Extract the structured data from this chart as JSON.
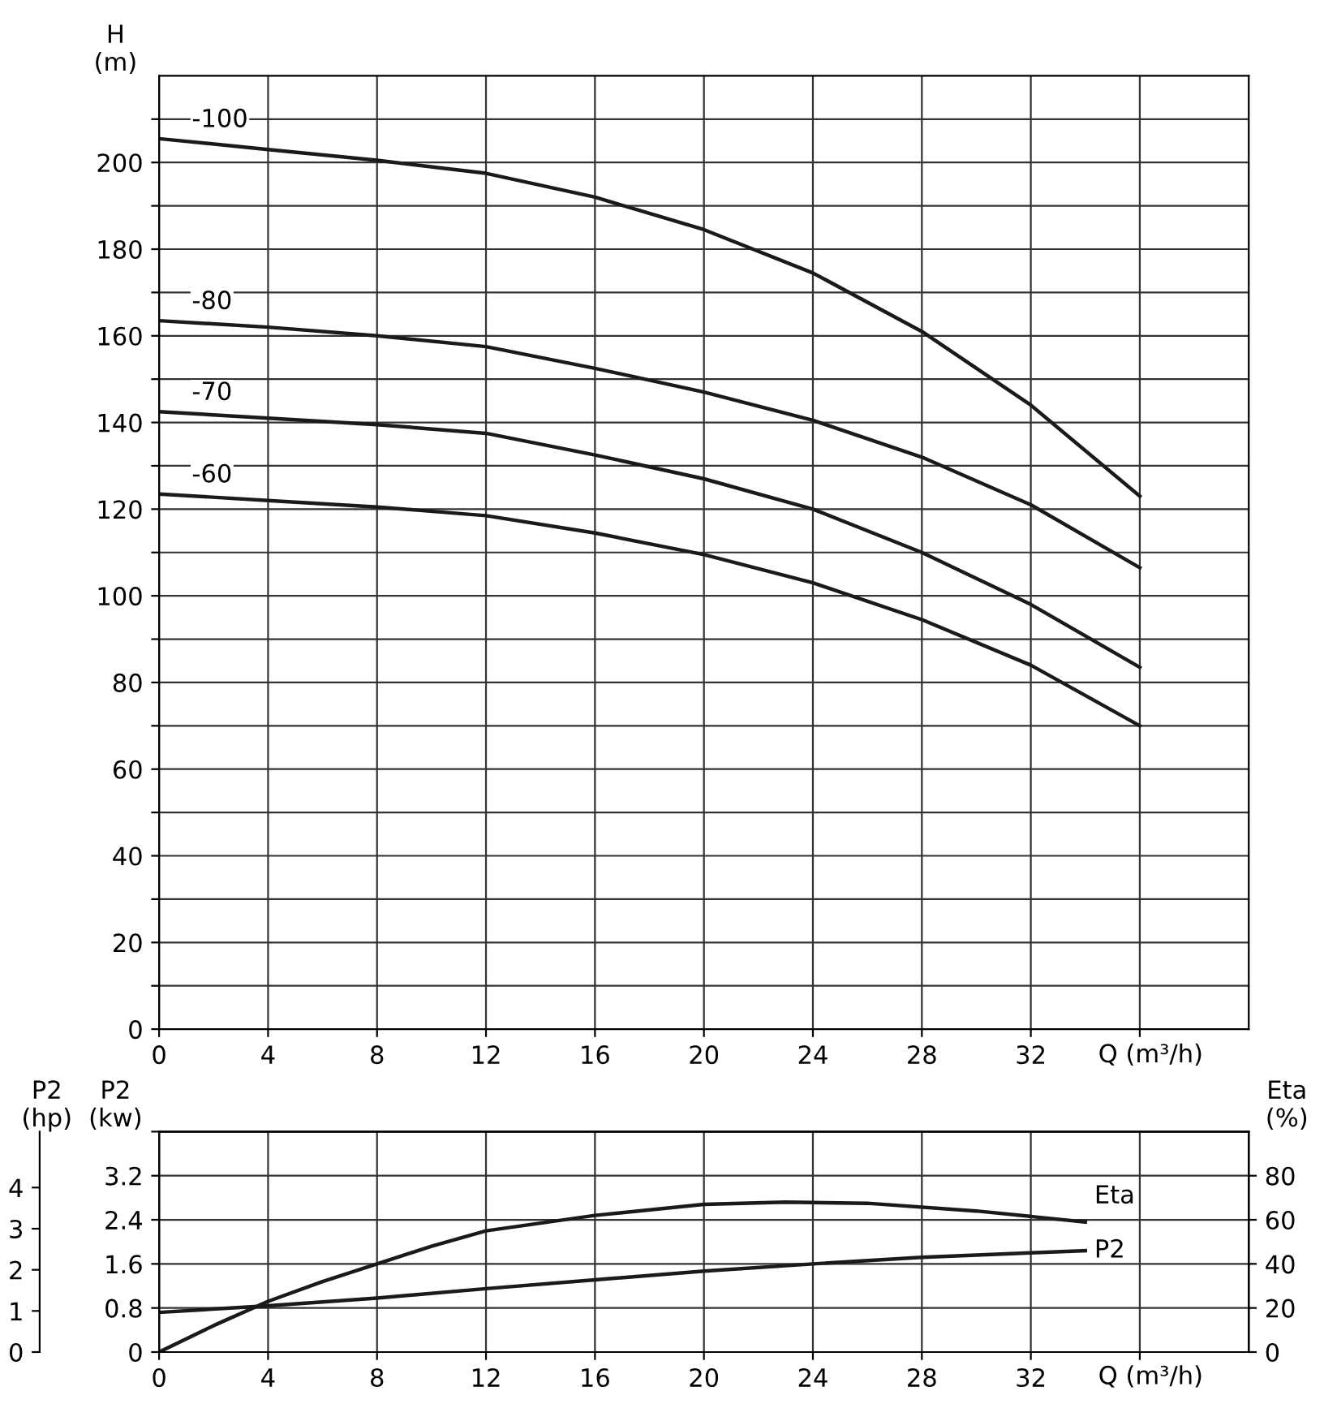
{
  "chart_data": [
    {
      "type": "line",
      "ylabel": "H\n(m)",
      "xlabel": "Q (m³/h)",
      "xlim": [
        0,
        40
      ],
      "ylim": [
        0,
        220
      ],
      "grid": true,
      "legend": false,
      "marker": "none",
      "line_style": "solid",
      "xticks": [
        0,
        4,
        8,
        12,
        16,
        20,
        24,
        28,
        32,
        {
          "value": 36,
          "label": null
        }
      ],
      "yticks": [
        0,
        {
          "value": 10,
          "label": null
        },
        20,
        {
          "value": 30,
          "label": null
        },
        40,
        {
          "value": 50,
          "label": null
        },
        60,
        {
          "value": 70,
          "label": null
        },
        80,
        {
          "value": 90,
          "label": null
        },
        100,
        {
          "value": 110,
          "label": null
        },
        120,
        {
          "value": 130,
          "label": null
        },
        140,
        {
          "value": 150,
          "label": null
        },
        160,
        {
          "value": 170,
          "label": null
        },
        180,
        {
          "value": 190,
          "label": null
        },
        200,
        {
          "value": 210,
          "label": null
        }
      ],
      "x": [
        0,
        4,
        8,
        12,
        16,
        20,
        24,
        28,
        32,
        36
      ],
      "series": [
        {
          "name": "-100",
          "color": "#1a1a1a",
          "values": [
            205.5,
            203,
            200.5,
            197.5,
            192,
            184.5,
            174.5,
            161,
            144,
            123
          ]
        },
        {
          "name": "-80",
          "color": "#1a1a1a",
          "values": [
            163.5,
            162,
            160,
            157.5,
            152.5,
            147,
            140.5,
            132,
            121,
            106.5
          ]
        },
        {
          "name": "-70",
          "color": "#1a1a1a",
          "values": [
            142.5,
            141,
            139.5,
            137.5,
            132.5,
            127,
            120,
            110,
            98,
            83.5
          ]
        },
        {
          "name": "-60",
          "color": "#1a1a1a",
          "values": [
            123.5,
            122,
            120.5,
            118.5,
            114.5,
            109.5,
            103,
            94.5,
            84,
            70
          ]
        }
      ]
    },
    {
      "type": "line",
      "ylabel": "P2\n(kw)",
      "y2label": "Eta\n(%)",
      "y3label": "P2\n(hp)",
      "xlabel": "Q (m³/h)",
      "xlim": [
        0,
        40
      ],
      "ylim": [
        0,
        4.0
      ],
      "y2lim": [
        0,
        100
      ],
      "y3lim": [
        0,
        5.36
      ],
      "grid": true,
      "legend": false,
      "marker": "none",
      "line_style": "solid",
      "xticks": [
        0,
        4,
        8,
        12,
        16,
        20,
        24,
        28,
        32,
        {
          "value": 36,
          "label": null
        }
      ],
      "yticks": [
        0,
        0.8,
        1.6,
        2.4,
        3.2,
        {
          "value": 4.0,
          "label": null
        }
      ],
      "y2ticks": [
        0,
        20,
        40,
        60,
        80
      ],
      "y3ticks": [
        0,
        1,
        2,
        3,
        4
      ],
      "series": [
        {
          "name": "Eta",
          "color": "#1a1a1a",
          "axis": "y2",
          "x": [
            0,
            2,
            4,
            6,
            8,
            10,
            12,
            16,
            20,
            23,
            26,
            30,
            34
          ],
          "values": [
            0,
            12,
            23,
            32,
            40,
            48,
            55,
            62,
            67,
            68,
            67.5,
            64,
            59
          ]
        },
        {
          "name": "P2",
          "color": "#1a1a1a",
          "axis": "y",
          "x": [
            0,
            4,
            8,
            12,
            16,
            20,
            24,
            28,
            32,
            34
          ],
          "values": [
            0.72,
            0.84,
            0.98,
            1.15,
            1.31,
            1.47,
            1.6,
            1.72,
            1.8,
            1.84
          ]
        }
      ]
    }
  ]
}
